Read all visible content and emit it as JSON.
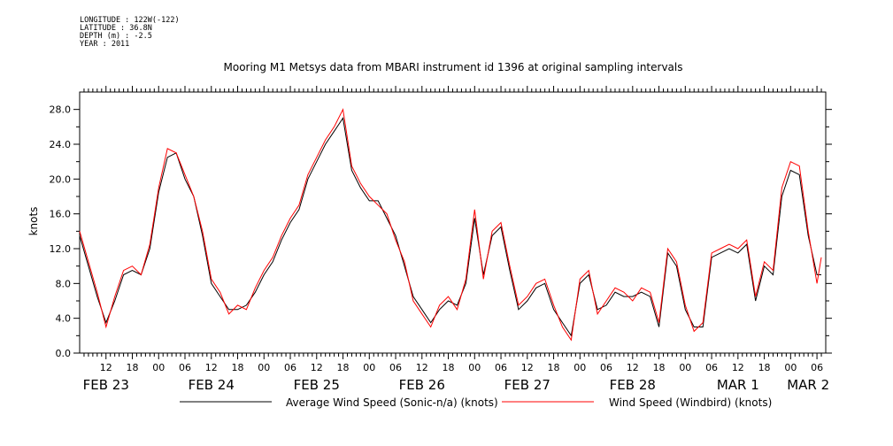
{
  "header": {
    "longitude": "LONGITUDE : 122W(-122)",
    "latitude": "LATITUDE : 36.8N",
    "depth": "DEPTH (m) : -2.5",
    "year": "YEAR : 2011"
  },
  "chart_data": {
    "type": "line",
    "title": "Mooring M1 Metsys data from MBARI instrument id 1396 at original sampling intervals",
    "ylabel": "knots",
    "xlabel": "",
    "ylim": [
      0,
      30
    ],
    "xlim": [
      "2011-02-23T06:00",
      "2011-03-02T08:00"
    ],
    "y_ticks": [
      "0.0",
      "4.0",
      "8.0",
      "12.0",
      "16.0",
      "20.0",
      "24.0",
      "28.0"
    ],
    "x_hour_ticks": [
      "12",
      "18",
      "00",
      "06",
      "12",
      "18",
      "00",
      "06",
      "12",
      "18",
      "00",
      "06",
      "12",
      "18",
      "00",
      "06",
      "12",
      "18",
      "00",
      "06",
      "12",
      "18",
      "00",
      "06",
      "12",
      "18",
      "00",
      "06"
    ],
    "x_day_labels": [
      "FEB 23",
      "FEB 24",
      "FEB 25",
      "FEB 26",
      "FEB 27",
      "FEB 28",
      "MAR 1",
      "MAR 2"
    ],
    "grid": false,
    "legend_position": "bottom",
    "series": [
      {
        "name": "Average Wind Speed (Sonic-n/a) (knots)",
        "color": "#000000",
        "x": [
          "2011-02-23T06:00",
          "2011-02-23T08:00",
          "2011-02-23T10:00",
          "2011-02-23T12:00",
          "2011-02-23T14:00",
          "2011-02-23T16:00",
          "2011-02-23T18:00",
          "2011-02-23T20:00",
          "2011-02-23T22:00",
          "2011-02-24T00:00",
          "2011-02-24T02:00",
          "2011-02-24T04:00",
          "2011-02-24T06:00",
          "2011-02-24T08:00",
          "2011-02-24T10:00",
          "2011-02-24T12:00",
          "2011-02-24T14:00",
          "2011-02-24T16:00",
          "2011-02-24T18:00",
          "2011-02-24T20:00",
          "2011-02-24T22:00",
          "2011-02-25T00:00",
          "2011-02-25T02:00",
          "2011-02-25T04:00",
          "2011-02-25T06:00",
          "2011-02-25T08:00",
          "2011-02-25T10:00",
          "2011-02-25T12:00",
          "2011-02-25T14:00",
          "2011-02-25T16:00",
          "2011-02-25T18:00",
          "2011-02-25T20:00",
          "2011-02-25T22:00",
          "2011-02-26T00:00",
          "2011-02-26T02:00",
          "2011-02-26T04:00",
          "2011-02-26T06:00",
          "2011-02-26T08:00",
          "2011-02-26T10:00",
          "2011-02-26T12:00",
          "2011-02-26T14:00",
          "2011-02-26T16:00",
          "2011-02-26T18:00",
          "2011-02-26T20:00",
          "2011-02-26T22:00",
          "2011-02-27T00:00",
          "2011-02-27T02:00",
          "2011-02-27T04:00",
          "2011-02-27T06:00",
          "2011-02-27T08:00",
          "2011-02-27T10:00",
          "2011-02-27T12:00",
          "2011-02-27T14:00",
          "2011-02-27T16:00",
          "2011-02-27T18:00",
          "2011-02-27T20:00",
          "2011-02-27T22:00",
          "2011-02-28T00:00",
          "2011-02-28T02:00",
          "2011-02-28T04:00",
          "2011-02-28T06:00",
          "2011-02-28T08:00",
          "2011-02-28T10:00",
          "2011-02-28T12:00",
          "2011-02-28T14:00",
          "2011-02-28T16:00",
          "2011-02-28T18:00",
          "2011-02-28T20:00",
          "2011-02-28T22:00",
          "2011-03-01T00:00",
          "2011-03-01T02:00",
          "2011-03-01T04:00",
          "2011-03-01T06:00",
          "2011-03-01T08:00",
          "2011-03-01T10:00",
          "2011-03-01T12:00",
          "2011-03-01T14:00",
          "2011-03-01T16:00",
          "2011-03-01T18:00",
          "2011-03-01T20:00",
          "2011-03-01T22:00",
          "2011-03-02T00:00",
          "2011-03-02T02:00",
          "2011-03-02T04:00",
          "2011-03-02T06:00",
          "2011-03-02T07:00"
        ],
        "values": [
          13.5,
          10.0,
          6.5,
          3.5,
          6.0,
          9.0,
          9.5,
          9.0,
          12.0,
          18.5,
          22.5,
          23.0,
          20.0,
          18.0,
          13.5,
          8.0,
          6.5,
          5.0,
          5.0,
          5.5,
          7.0,
          9.0,
          10.5,
          13.0,
          15.0,
          16.5,
          20.0,
          22.0,
          24.0,
          25.5,
          27.0,
          21.0,
          19.0,
          17.5,
          17.5,
          15.5,
          13.5,
          10.0,
          6.5,
          5.0,
          3.5,
          5.0,
          6.0,
          5.5,
          8.0,
          15.5,
          9.0,
          13.5,
          14.5,
          9.5,
          5.0,
          6.0,
          7.5,
          8.0,
          5.0,
          3.5,
          2.0,
          8.0,
          9.0,
          5.0,
          5.5,
          7.0,
          6.5,
          6.5,
          7.0,
          6.5,
          3.0,
          11.5,
          10.0,
          5.0,
          3.0,
          3.0,
          11.0,
          11.5,
          12.0,
          11.5,
          12.5,
          6.0,
          10.0,
          9.0,
          18.0,
          21.0,
          20.5,
          13.5,
          9.0,
          9.0
        ]
      },
      {
        "name": "Wind Speed (Windbird) (knots)",
        "color": "#ff0000",
        "x": [
          "2011-02-23T06:00",
          "2011-02-23T08:00",
          "2011-02-23T10:00",
          "2011-02-23T12:00",
          "2011-02-23T14:00",
          "2011-02-23T16:00",
          "2011-02-23T18:00",
          "2011-02-23T20:00",
          "2011-02-23T22:00",
          "2011-02-24T00:00",
          "2011-02-24T02:00",
          "2011-02-24T04:00",
          "2011-02-24T06:00",
          "2011-02-24T08:00",
          "2011-02-24T10:00",
          "2011-02-24T12:00",
          "2011-02-24T14:00",
          "2011-02-24T16:00",
          "2011-02-24T18:00",
          "2011-02-24T20:00",
          "2011-02-24T22:00",
          "2011-02-25T00:00",
          "2011-02-25T02:00",
          "2011-02-25T04:00",
          "2011-02-25T06:00",
          "2011-02-25T08:00",
          "2011-02-25T10:00",
          "2011-02-25T12:00",
          "2011-02-25T14:00",
          "2011-02-25T16:00",
          "2011-02-25T18:00",
          "2011-02-25T20:00",
          "2011-02-25T22:00",
          "2011-02-26T00:00",
          "2011-02-26T02:00",
          "2011-02-26T04:00",
          "2011-02-26T06:00",
          "2011-02-26T08:00",
          "2011-02-26T10:00",
          "2011-02-26T12:00",
          "2011-02-26T14:00",
          "2011-02-26T16:00",
          "2011-02-26T18:00",
          "2011-02-26T20:00",
          "2011-02-26T22:00",
          "2011-02-27T00:00",
          "2011-02-27T02:00",
          "2011-02-27T04:00",
          "2011-02-27T06:00",
          "2011-02-27T08:00",
          "2011-02-27T10:00",
          "2011-02-27T12:00",
          "2011-02-27T14:00",
          "2011-02-27T16:00",
          "2011-02-27T18:00",
          "2011-02-27T20:00",
          "2011-02-27T22:00",
          "2011-02-28T00:00",
          "2011-02-28T02:00",
          "2011-02-28T04:00",
          "2011-02-28T06:00",
          "2011-02-28T08:00",
          "2011-02-28T10:00",
          "2011-02-28T12:00",
          "2011-02-28T14:00",
          "2011-02-28T16:00",
          "2011-02-28T18:00",
          "2011-02-28T20:00",
          "2011-02-28T22:00",
          "2011-03-01T00:00",
          "2011-03-01T02:00",
          "2011-03-01T04:00",
          "2011-03-01T06:00",
          "2011-03-01T08:00",
          "2011-03-01T10:00",
          "2011-03-01T12:00",
          "2011-03-01T14:00",
          "2011-03-01T16:00",
          "2011-03-01T18:00",
          "2011-03-01T20:00",
          "2011-03-01T22:00",
          "2011-03-02T00:00",
          "2011-03-02T02:00",
          "2011-03-02T04:00",
          "2011-03-02T06:00",
          "2011-03-02T07:00"
        ],
        "values": [
          14.0,
          10.5,
          7.0,
          3.0,
          6.5,
          9.5,
          10.0,
          9.0,
          12.5,
          19.0,
          23.5,
          23.0,
          20.5,
          18.0,
          14.0,
          8.5,
          7.0,
          4.5,
          5.5,
          5.0,
          7.5,
          9.5,
          11.0,
          13.5,
          15.5,
          17.0,
          20.5,
          22.5,
          24.5,
          26.0,
          28.0,
          21.5,
          19.5,
          18.0,
          17.0,
          16.0,
          13.0,
          10.5,
          6.0,
          4.5,
          3.0,
          5.5,
          6.5,
          5.0,
          8.5,
          16.5,
          8.5,
          14.0,
          15.0,
          10.0,
          5.5,
          6.5,
          8.0,
          8.5,
          5.5,
          3.0,
          1.5,
          8.5,
          9.5,
          4.5,
          6.0,
          7.5,
          7.0,
          6.0,
          7.5,
          7.0,
          3.5,
          12.0,
          10.5,
          5.5,
          2.5,
          3.5,
          11.5,
          12.0,
          12.5,
          12.0,
          13.0,
          6.5,
          10.5,
          9.5,
          19.0,
          22.0,
          21.5,
          14.0,
          8.0,
          11.0
        ]
      }
    ]
  }
}
